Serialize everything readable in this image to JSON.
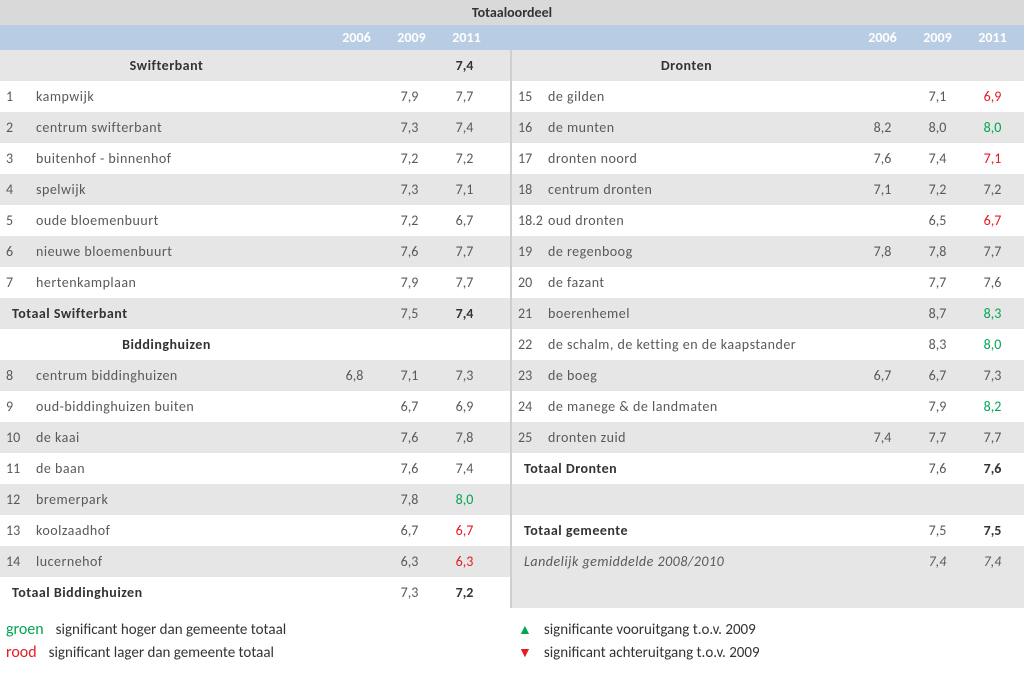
{
  "title": "Totaaloordeel",
  "years": [
    "2006",
    "2009",
    "2011"
  ],
  "colors": {
    "title_bg": "#d9d9d9",
    "year_row_bg": "#b8cce4",
    "band_bg": "#e6e6e6",
    "text": "#595959",
    "green": "#00a651",
    "red": "#e31b23"
  },
  "left": [
    {
      "type": "section",
      "name": "Swifterbant",
      "v": [
        "",
        "",
        "7,4"
      ],
      "bold2011": true
    },
    {
      "type": "item",
      "num": "1",
      "name": "kampwijk",
      "v": [
        "",
        "7,9",
        "7,7"
      ]
    },
    {
      "type": "item",
      "num": "2",
      "name": "centrum swifterbant",
      "v": [
        "",
        "7,3",
        "7,4"
      ]
    },
    {
      "type": "item",
      "num": "3",
      "name": "buitenhof - binnenhof",
      "v": [
        "",
        "7,2",
        "7,2"
      ]
    },
    {
      "type": "item",
      "num": "4",
      "name": "spelwijk",
      "v": [
        "",
        "7,3",
        "7,1"
      ]
    },
    {
      "type": "item",
      "num": "5",
      "name": "oude bloemenbuurt",
      "v": [
        "",
        "7,2",
        "6,7"
      ]
    },
    {
      "type": "item",
      "num": "6",
      "name": "nieuwe bloemenbuurt",
      "v": [
        "",
        "7,6",
        "7,7"
      ]
    },
    {
      "type": "item",
      "num": "7",
      "name": "hertenkamplaan",
      "v": [
        "",
        "7,9",
        "7,7"
      ]
    },
    {
      "type": "summary",
      "name": "Totaal Swifterbant",
      "v": [
        "",
        "7,5",
        "7,4"
      ],
      "bold2011": true
    },
    {
      "type": "section",
      "name": "Biddinghuizen",
      "v": [
        "",
        "",
        ""
      ]
    },
    {
      "type": "item",
      "num": "8",
      "name": "centrum biddinghuizen",
      "v": [
        "6,8",
        "7,1",
        "7,3"
      ]
    },
    {
      "type": "item",
      "num": "9",
      "name": "oud-biddinghuizen buiten",
      "v": [
        "",
        "6,7",
        "6,9"
      ]
    },
    {
      "type": "item",
      "num": "10",
      "name": "de kaai",
      "v": [
        "",
        "7,6",
        "7,8"
      ]
    },
    {
      "type": "item",
      "num": "11",
      "name": "de baan",
      "v": [
        "",
        "7,6",
        "7,4"
      ]
    },
    {
      "type": "item",
      "num": "12",
      "name": "bremerpark",
      "v": [
        "",
        "7,8",
        "8,0"
      ],
      "col2011": "green"
    },
    {
      "type": "item",
      "num": "13",
      "name": "koolzaadhof",
      "v": [
        "",
        "6,7",
        "6,7"
      ],
      "col2011": "red"
    },
    {
      "type": "item",
      "num": "14",
      "name": "lucernehof",
      "v": [
        "",
        "6,3",
        "6,3"
      ],
      "col2011": "red"
    },
    {
      "type": "summary",
      "name": "Totaal Biddinghuizen",
      "v": [
        "",
        "7,3",
        "7,2"
      ],
      "bold2011": true
    }
  ],
  "right": [
    {
      "type": "section",
      "name": "Dronten",
      "v": [
        "",
        "",
        ""
      ]
    },
    {
      "type": "item",
      "num": "15",
      "name": "de gilden",
      "v": [
        "",
        "7,1",
        "6,9"
      ],
      "col2011": "red"
    },
    {
      "type": "item",
      "num": "16",
      "name": "de munten",
      "v": [
        "8,2",
        "8,0",
        "8,0"
      ],
      "col2011": "green"
    },
    {
      "type": "item",
      "num": "17",
      "name": "dronten noord",
      "v": [
        "7,6",
        "7,4",
        "7,1"
      ],
      "col2011": "red"
    },
    {
      "type": "item",
      "num": "18",
      "name": "centrum dronten",
      "v": [
        "7,1",
        "7,2",
        "7,2"
      ]
    },
    {
      "type": "item",
      "num": "18.2",
      "name": "oud dronten",
      "v": [
        "",
        "6,5",
        "6,7"
      ],
      "col2011": "red"
    },
    {
      "type": "item",
      "num": "19",
      "name": "de regenboog",
      "v": [
        "7,8",
        "7,8",
        "7,7"
      ]
    },
    {
      "type": "item",
      "num": "20",
      "name": "de fazant",
      "v": [
        "",
        "7,7",
        "7,6"
      ]
    },
    {
      "type": "item",
      "num": "21",
      "name": "boerenhemel",
      "v": [
        "",
        "8,7",
        "8,3"
      ],
      "col2011": "green"
    },
    {
      "type": "item",
      "num": "22",
      "name": "de schalm, de ketting en de kaapstander",
      "v": [
        "",
        "8,3",
        "8,0"
      ],
      "col2011": "green"
    },
    {
      "type": "item",
      "num": "23",
      "name": "de boeg",
      "v": [
        "6,7",
        "6,7",
        "7,3"
      ]
    },
    {
      "type": "item",
      "num": "24",
      "name": "de manege & de landmaten",
      "v": [
        "",
        "7,9",
        "8,2"
      ],
      "col2011": "green"
    },
    {
      "type": "item",
      "num": "25",
      "name": "dronten zuid",
      "v": [
        "7,4",
        "7,7",
        "7,7"
      ]
    },
    {
      "type": "summary",
      "name": "Totaal Dronten",
      "v": [
        "",
        "7,6",
        "7,6"
      ],
      "bold2011": true
    },
    {
      "type": "blank"
    },
    {
      "type": "summary",
      "name": "Totaal gemeente",
      "v": [
        "",
        "7,5",
        "7,5"
      ],
      "bold2011": true
    },
    {
      "type": "italic",
      "name": "Landelijk gemiddelde 2008/2010",
      "v": [
        "",
        "7,4",
        "7,4"
      ]
    },
    {
      "type": "blank"
    }
  ],
  "legend": {
    "green_word": "groen",
    "green_text": "significant hoger dan gemeente totaal",
    "red_word": "rood",
    "red_text": "significant lager dan gemeente totaal",
    "up_text": "significante vooruitgang t.o.v. 2009",
    "down_text": "significant achteruitgang t.o.v. 2009",
    "up_glyph": "▲",
    "down_glyph": "▼"
  }
}
